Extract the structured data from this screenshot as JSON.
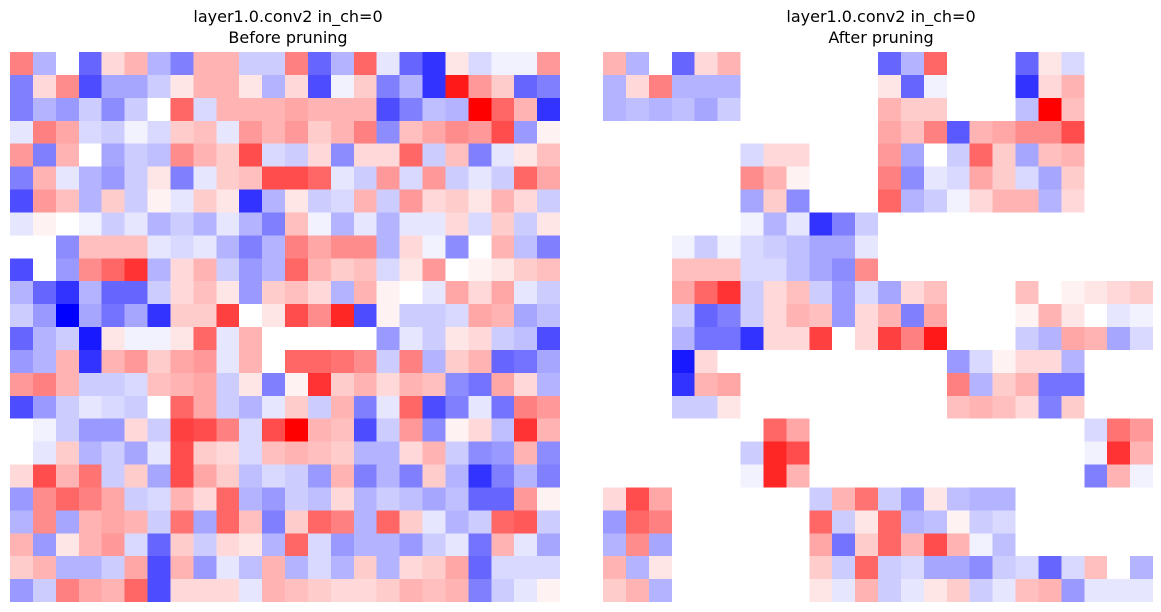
{
  "chart_data": [
    {
      "type": "heatmap",
      "title": "layer1.0.conv2 in_ch=0",
      "subtitle": "Before pruning",
      "xlabel": "",
      "ylabel": "",
      "colormap": "bwr",
      "value_range": [
        -1,
        1
      ],
      "grid": false,
      "rows": 24,
      "cols": 24,
      "values": [
        [
          0.5,
          -0.3,
          0,
          -0.6,
          0.15,
          0.3,
          -0.3,
          -0.5,
          0.3,
          0.3,
          -0.2,
          -0.2,
          0.5,
          -0.6,
          -0.3,
          0.6,
          -0.1,
          -0.6,
          -0.8,
          0.1,
          -0.15,
          -0.05,
          -0.05,
          0.4
        ],
        [
          -0.5,
          0.15,
          0.45,
          -0.7,
          -0.35,
          -0.35,
          -0.2,
          0.1,
          0.3,
          0.3,
          0.1,
          -0.3,
          0.15,
          -0.7,
          -0.05,
          0.2,
          -0.5,
          -0.3,
          -0.8,
          0.9,
          0.4,
          0.2,
          -0.6,
          -0.5
        ],
        [
          -0.5,
          -0.3,
          -0.4,
          -0.2,
          -0.45,
          -0.2,
          0.0,
          0.6,
          -0.15,
          0.3,
          0.3,
          0.3,
          0.35,
          0.3,
          0.3,
          0.3,
          -0.7,
          -0.5,
          -0.25,
          -0.3,
          1.0,
          0.6,
          0.3,
          -0.8
        ],
        [
          -0.1,
          0.5,
          0.35,
          -0.15,
          -0.2,
          -0.05,
          -0.15,
          0.2,
          0.25,
          -0.1,
          0.4,
          0.3,
          0.4,
          0.2,
          0.3,
          0.5,
          -0.45,
          0.25,
          0.35,
          0.45,
          0.4,
          0.7,
          -0.4,
          0.05
        ],
        [
          0.4,
          -0.5,
          0.3,
          0.0,
          -0.35,
          -0.2,
          -0.25,
          0.45,
          0.3,
          0.2,
          0.7,
          -0.15,
          -0.2,
          0.15,
          -0.45,
          0.15,
          0.15,
          0.6,
          -0.2,
          0.25,
          -0.5,
          -0.1,
          0.1,
          0.25
        ],
        [
          -0.5,
          0.3,
          -0.1,
          -0.3,
          -0.4,
          -0.2,
          0.1,
          -0.5,
          -0.1,
          0.2,
          0.25,
          0.7,
          0.7,
          0.6,
          -0.1,
          -0.2,
          0.4,
          -0.15,
          0.4,
          -0.2,
          -0.1,
          -0.2,
          0.6,
          0.35
        ],
        [
          -0.7,
          0.4,
          0.25,
          -0.3,
          0.2,
          -0.2,
          0.05,
          -0.1,
          0.2,
          0.1,
          -0.8,
          -0.3,
          0.1,
          -0.2,
          -0.15,
          0.3,
          -0.2,
          0.4,
          0.15,
          0.2,
          0.1,
          0.3,
          0.15,
          -0.2
        ],
        [
          -0.1,
          0.05,
          0.0,
          -0.05,
          -0.2,
          -0.1,
          -0.3,
          -0.2,
          -0.3,
          -0.1,
          -0.3,
          -0.5,
          0.25,
          -0.05,
          -0.3,
          -0.1,
          -0.3,
          -0.1,
          -0.1,
          0.15,
          -0.15,
          0.2,
          -0.2,
          0.1
        ],
        [
          0.0,
          0.0,
          -0.45,
          0.25,
          0.25,
          0.25,
          -0.1,
          -0.15,
          -0.1,
          -0.3,
          -0.5,
          -0.3,
          0.5,
          0.35,
          0.45,
          0.45,
          -0.3,
          0.15,
          -0.05,
          -0.45,
          0.0,
          0.3,
          -0.25,
          -0.5
        ],
        [
          -0.7,
          0.0,
          -0.4,
          0.45,
          0.6,
          0.8,
          -0.3,
          0.15,
          0.3,
          -0.2,
          -0.4,
          -0.3,
          0.6,
          0.3,
          0.2,
          0.25,
          -0.15,
          0.1,
          0.4,
          0.0,
          0.05,
          0.1,
          0.2,
          0.25
        ],
        [
          -0.3,
          -0.6,
          -0.8,
          -0.3,
          -0.6,
          -0.6,
          -0.2,
          0.15,
          0.25,
          0.1,
          -0.4,
          0.2,
          0.25,
          0.15,
          -0.3,
          0.3,
          0.05,
          0.0,
          -0.1,
          0.35,
          0.15,
          0.35,
          -0.1,
          -0.2
        ],
        [
          -0.2,
          -0.4,
          -1.0,
          -0.35,
          -0.55,
          -0.35,
          -0.8,
          0.2,
          0.2,
          0.75,
          0.0,
          0.1,
          0.7,
          0.45,
          0.85,
          -0.7,
          0.05,
          -0.2,
          -0.2,
          -0.15,
          0.35,
          0.3,
          -0.35,
          -0.25
        ],
        [
          -0.6,
          -0.3,
          -0.2,
          -0.9,
          0.1,
          -0.05,
          -0.05,
          0.1,
          0.6,
          -0.1,
          0.3,
          0.0,
          0.0,
          0.0,
          0.0,
          0.0,
          -0.4,
          -0.1,
          -0.2,
          0.1,
          0.15,
          -0.2,
          -0.25,
          -0.7
        ],
        [
          -0.4,
          -0.3,
          0.3,
          -0.8,
          0.3,
          0.4,
          0.2,
          0.35,
          0.4,
          -0.1,
          0.3,
          0.0,
          0.6,
          0.6,
          0.55,
          0.45,
          -0.2,
          0.5,
          -0.3,
          0.2,
          0.3,
          -0.6,
          -0.55,
          -0.35
        ],
        [
          0.4,
          0.5,
          0.3,
          -0.2,
          -0.2,
          -0.15,
          0.25,
          0.3,
          0.35,
          -0.2,
          0.1,
          -0.5,
          0.05,
          0.8,
          0.2,
          0.3,
          0.15,
          0.3,
          0.25,
          -0.45,
          -0.55,
          0.35,
          0.15,
          -0.3
        ],
        [
          -0.7,
          -0.4,
          -0.2,
          -0.1,
          -0.15,
          -0.2,
          0.0,
          0.6,
          0.35,
          -0.2,
          -0.3,
          -0.1,
          0.2,
          -0.2,
          0.3,
          -0.5,
          -0.1,
          0.6,
          -0.7,
          -0.5,
          -0.1,
          -0.55,
          0.5,
          0.4
        ],
        [
          0.0,
          -0.05,
          -0.2,
          -0.4,
          -0.4,
          0.15,
          -0.2,
          0.75,
          0.7,
          0.5,
          -0.15,
          0.7,
          1.0,
          0.3,
          0.25,
          -0.7,
          -0.2,
          0.4,
          -0.45,
          0.05,
          0.15,
          -0.25,
          0.8,
          0.3
        ],
        [
          0.0,
          -0.1,
          0.2,
          -0.3,
          -0.2,
          -0.35,
          -0.1,
          0.7,
          0.2,
          0.15,
          -0.15,
          0.25,
          0.3,
          0.25,
          0.2,
          -0.3,
          -0.3,
          0.15,
          0.3,
          -0.2,
          -0.45,
          -0.4,
          0.3,
          -0.45
        ],
        [
          0.15,
          0.7,
          0.3,
          0.55,
          -0.2,
          0.2,
          -0.35,
          0.7,
          0.35,
          0.2,
          -0.25,
          -0.15,
          -0.2,
          -0.4,
          0.3,
          -0.5,
          -0.3,
          -0.5,
          0.2,
          -0.3,
          -0.8,
          -0.5,
          -0.3,
          -0.5
        ],
        [
          -0.4,
          0.45,
          0.6,
          0.5,
          0.35,
          -0.2,
          -0.15,
          0.3,
          0.15,
          0.6,
          -0.3,
          -0.4,
          -0.2,
          -0.25,
          0.15,
          -0.3,
          -0.2,
          -0.25,
          -0.35,
          -0.25,
          -0.6,
          -0.6,
          0.4,
          0.05
        ],
        [
          -0.3,
          0.45,
          -0.35,
          0.3,
          0.35,
          0.3,
          -0.2,
          0.55,
          -0.35,
          0.6,
          0.25,
          -0.5,
          0.2,
          0.6,
          0.5,
          -0.3,
          0.6,
          0.2,
          -0.1,
          -0.3,
          -0.2,
          0.6,
          0.65,
          -0.2
        ],
        [
          0.3,
          -0.4,
          0.1,
          0.3,
          0.4,
          -0.15,
          -0.6,
          0.2,
          -0.2,
          0.15,
          0.1,
          -0.3,
          0.6,
          -0.15,
          -0.4,
          -0.3,
          -0.3,
          -0.4,
          -0.2,
          -0.1,
          -0.55,
          0.3,
          -0.1,
          -0.35
        ],
        [
          0.2,
          0.3,
          -0.3,
          -0.3,
          -0.2,
          0.35,
          -0.7,
          0.3,
          -0.4,
          -0.1,
          -0.25,
          0.3,
          -0.3,
          -0.15,
          -0.3,
          0.2,
          -0.3,
          0.15,
          0.2,
          0.35,
          -0.6,
          -0.15,
          -0.15,
          -0.15
        ],
        [
          -0.4,
          -0.2,
          0.5,
          0.35,
          0.3,
          0.6,
          -0.7,
          0.15,
          0.15,
          0.15,
          -0.1,
          0.3,
          0.25,
          0.2,
          0.15,
          0.15,
          0.2,
          0.3,
          0.25,
          0.3,
          -0.5,
          -0.2,
          -0.1,
          0.05
        ]
      ]
    },
    {
      "type": "heatmap",
      "title": "layer1.0.conv2 in_ch=0",
      "subtitle": "After pruning",
      "xlabel": "",
      "ylabel": "",
      "colormap": "bwr",
      "value_range": [
        -1,
        1
      ],
      "grid": false,
      "rows": 24,
      "cols": 24,
      "values": [
        [
          0.3,
          -0.3,
          0.0,
          -0.6,
          0.15,
          0.3,
          0,
          0,
          0,
          0,
          0,
          0,
          -0.6,
          -0.3,
          0.6,
          0,
          0,
          0,
          -0.6,
          0.1,
          -0.15,
          0,
          0,
          0
        ],
        [
          -0.3,
          0.15,
          0.5,
          -0.3,
          -0.3,
          -0.3,
          0,
          0,
          0,
          0,
          0,
          0,
          0.1,
          -0.6,
          -0.05,
          0,
          0,
          0,
          -0.8,
          0.15,
          0.3,
          0,
          0,
          0
        ],
        [
          -0.3,
          -0.25,
          -0.3,
          -0.25,
          -0.35,
          -0.2,
          0,
          0,
          0,
          0,
          0,
          0,
          0.3,
          0.2,
          0.2,
          0,
          0,
          0,
          -0.25,
          1.0,
          0.25,
          0,
          0,
          0
        ],
        [
          0,
          0,
          0,
          0,
          0,
          0,
          0,
          0,
          0,
          0,
          0,
          0,
          0.35,
          0.25,
          0.5,
          -0.65,
          0.3,
          0.35,
          0.45,
          0.45,
          0.7,
          0,
          0,
          0
        ],
        [
          0,
          0,
          0,
          0,
          0,
          0,
          -0.15,
          0.15,
          0.15,
          0,
          0,
          0,
          0.4,
          -0.35,
          0.0,
          -0.2,
          0.6,
          0.2,
          -0.35,
          0.25,
          0.3,
          0,
          0,
          0
        ],
        [
          0,
          0,
          0,
          0,
          0,
          0,
          0.45,
          0.3,
          0.05,
          0,
          0,
          0,
          0.5,
          -0.45,
          -0.1,
          -0.15,
          0.35,
          0.2,
          -0.15,
          -0.35,
          0.2,
          0,
          0,
          0
        ],
        [
          0,
          0,
          0,
          0,
          0,
          0,
          -0.35,
          0.2,
          -0.45,
          0,
          0,
          0,
          0.6,
          -0.3,
          -0.2,
          -0.05,
          0.15,
          0.3,
          0.3,
          -0.3,
          0.15,
          0,
          0,
          0
        ],
        [
          0,
          0,
          0,
          0,
          0,
          0,
          -0.05,
          -0.3,
          -0.1,
          -0.8,
          -0.5,
          -0.2,
          0,
          0,
          0,
          0,
          0,
          0,
          0,
          0,
          0,
          0,
          0,
          0
        ],
        [
          0,
          0,
          0,
          -0.05,
          -0.2,
          -0.05,
          -0.15,
          -0.2,
          -0.25,
          -0.35,
          -0.35,
          -0.1,
          0,
          0,
          0,
          0,
          0,
          0,
          0,
          0,
          0,
          0,
          0,
          0
        ],
        [
          0,
          0,
          0,
          0.25,
          0.25,
          0.25,
          -0.15,
          -0.15,
          -0.25,
          -0.35,
          -0.45,
          0.45,
          0,
          0,
          0,
          0,
          0,
          0,
          0,
          0,
          0,
          0,
          0,
          0
        ],
        [
          0,
          0,
          0,
          0.35,
          0.6,
          0.8,
          -0.2,
          0.15,
          0.25,
          -0.2,
          -0.4,
          -0.15,
          -0.35,
          0.15,
          0.25,
          0,
          0,
          0,
          0.25,
          0.0,
          0.05,
          0.1,
          0.15,
          0.2
        ],
        [
          0,
          0,
          0,
          -0.2,
          -0.6,
          -0.5,
          -0.2,
          0.15,
          0.3,
          0.25,
          -0.4,
          0.15,
          0.3,
          -0.5,
          0.35,
          0,
          0,
          0,
          0.05,
          0.3,
          0.1,
          0.0,
          -0.1,
          -0.05
        ],
        [
          0,
          0,
          0,
          -0.3,
          -0.55,
          -0.55,
          -0.8,
          0.15,
          0.15,
          0.75,
          0.0,
          0.15,
          0.75,
          0.5,
          0.9,
          0,
          0,
          0,
          -0.2,
          -0.3,
          0.35,
          0.3,
          -0.35,
          -0.15
        ],
        [
          0,
          0,
          0,
          -0.9,
          0.15,
          0.0,
          0,
          0,
          0,
          0,
          0,
          0,
          0,
          0,
          0,
          -0.4,
          -0.15,
          0.05,
          0.15,
          0.15,
          -0.3,
          0,
          0,
          0
        ],
        [
          0,
          0,
          0,
          -0.8,
          0.3,
          0.35,
          0,
          0,
          0,
          0,
          0,
          0,
          0,
          0,
          0,
          0.5,
          -0.3,
          0.2,
          0.3,
          -0.55,
          -0.55,
          0,
          0,
          0
        ],
        [
          0,
          0,
          0,
          -0.2,
          -0.2,
          0.1,
          0,
          0,
          0,
          0,
          0,
          0,
          0,
          0,
          0,
          0.25,
          0.3,
          0.25,
          0.15,
          -0.5,
          0.2,
          0,
          0,
          0
        ],
        [
          0,
          0,
          0,
          0,
          0,
          0,
          0,
          0.6,
          0.35,
          0,
          0,
          0,
          0,
          0,
          0,
          0,
          0,
          0,
          0,
          0,
          0,
          -0.15,
          0.55,
          0.4
        ],
        [
          0,
          0,
          0,
          0,
          0,
          0,
          -0.2,
          0.85,
          0.7,
          0,
          0,
          0,
          0,
          0,
          0,
          0,
          0,
          0,
          0,
          0,
          0,
          -0.05,
          0.8,
          0.3
        ],
        [
          0,
          0,
          0,
          0,
          0,
          0,
          -0.05,
          0.85,
          0.3,
          0,
          0,
          0,
          0,
          0,
          0,
          0,
          0,
          0,
          0,
          0,
          0,
          -0.5,
          0.3,
          -0.05
        ],
        [
          0.15,
          0.7,
          0.35,
          0,
          0,
          0,
          0,
          0,
          0,
          -0.2,
          0.3,
          0.55,
          -0.2,
          -0.4,
          0.1,
          -0.25,
          -0.3,
          -0.3,
          0,
          0,
          0,
          0,
          0,
          0
        ],
        [
          -0.4,
          0.6,
          0.5,
          0,
          0,
          0,
          0,
          0,
          0,
          0.6,
          -0.2,
          0.1,
          0.6,
          -0.3,
          -0.25,
          0.05,
          -0.2,
          -0.15,
          0,
          0,
          0,
          0,
          0,
          0
        ],
        [
          -0.3,
          0.45,
          -0.35,
          0,
          0,
          0,
          0,
          0,
          0,
          0.35,
          -0.55,
          0.2,
          0.6,
          0.3,
          0.7,
          0.3,
          -0.05,
          -0.25,
          0,
          0,
          0,
          0,
          0,
          0
        ],
        [
          0.3,
          -0.3,
          0.1,
          0,
          0,
          0,
          0,
          0,
          0,
          0.2,
          -0.2,
          0.6,
          -0.2,
          -0.15,
          -0.35,
          -0.35,
          -0.45,
          -0.2,
          -0.15,
          -0.6,
          -0.15,
          0.25,
          0.0,
          -0.3
        ],
        [
          0.2,
          0.3,
          -0.3,
          0,
          0,
          0,
          0,
          0,
          0,
          0.1,
          -0.1,
          0.3,
          -0.2,
          -0.1,
          0.1,
          0.2,
          -0.2,
          -0.1,
          0.25,
          0.3,
          -0.4,
          -0.1,
          -0.1,
          -0.1
        ]
      ]
    }
  ]
}
